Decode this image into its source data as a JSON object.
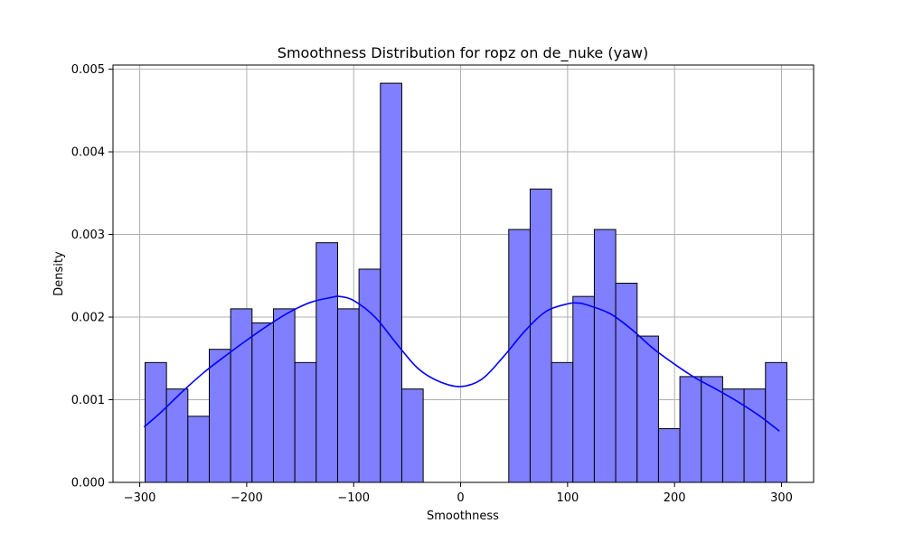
{
  "chart_data": {
    "type": "bar",
    "title": "Smoothness Distribution for ropz on de_nuke (yaw)",
    "xlabel": "Smoothness",
    "ylabel": "Density",
    "xlim": [
      -325,
      330
    ],
    "ylim": [
      0,
      0.00505
    ],
    "grid": true,
    "colors": {
      "bar_fill": "#7f7fff",
      "bar_edge": "#000000",
      "kde": "#0000ff",
      "grid": "#b0b0b0"
    },
    "x_ticks": [
      {
        "value": -300,
        "label": "−300"
      },
      {
        "value": -200,
        "label": "−200"
      },
      {
        "value": -100,
        "label": "−100"
      },
      {
        "value": 0,
        "label": "0"
      },
      {
        "value": 100,
        "label": "100"
      },
      {
        "value": 200,
        "label": "200"
      },
      {
        "value": 300,
        "label": "300"
      }
    ],
    "y_ticks": [
      {
        "value": 0,
        "label": "0.000"
      },
      {
        "value": 0.001,
        "label": "0.001"
      },
      {
        "value": 0.002,
        "label": "0.002"
      },
      {
        "value": 0.003,
        "label": "0.003"
      },
      {
        "value": 0.004,
        "label": "0.004"
      },
      {
        "value": 0.005,
        "label": "0.005"
      }
    ],
    "bins": [
      {
        "x0": -295,
        "x1": -275,
        "value": 0.00145
      },
      {
        "x0": -275,
        "x1": -255,
        "value": 0.00113
      },
      {
        "x0": -255,
        "x1": -235,
        "value": 0.0008
      },
      {
        "x0": -235,
        "x1": -215,
        "value": 0.00161
      },
      {
        "x0": -215,
        "x1": -195,
        "value": 0.0021
      },
      {
        "x0": -195,
        "x1": -175,
        "value": 0.00193
      },
      {
        "x0": -175,
        "x1": -155,
        "value": 0.0021
      },
      {
        "x0": -155,
        "x1": -135,
        "value": 0.00145
      },
      {
        "x0": -135,
        "x1": -115,
        "value": 0.0029
      },
      {
        "x0": -115,
        "x1": -95,
        "value": 0.0021
      },
      {
        "x0": -95,
        "x1": -75,
        "value": 0.00258
      },
      {
        "x0": -75,
        "x1": -55,
        "value": 0.00483
      },
      {
        "x0": -55,
        "x1": -35,
        "value": 0.00113
      },
      {
        "x0": -35,
        "x1": -15,
        "value": 0
      },
      {
        "x0": -15,
        "x1": 5,
        "value": 0
      },
      {
        "x0": 5,
        "x1": 25,
        "value": 0
      },
      {
        "x0": 25,
        "x1": 45,
        "value": 0
      },
      {
        "x0": 45,
        "x1": 65,
        "value": 0.00306
      },
      {
        "x0": 65,
        "x1": 85,
        "value": 0.00355
      },
      {
        "x0": 85,
        "x1": 105,
        "value": 0.00145
      },
      {
        "x0": 105,
        "x1": 125,
        "value": 0.00225
      },
      {
        "x0": 125,
        "x1": 145,
        "value": 0.00306
      },
      {
        "x0": 145,
        "x1": 165,
        "value": 0.00241
      },
      {
        "x0": 165,
        "x1": 185,
        "value": 0.00177
      },
      {
        "x0": 185,
        "x1": 205,
        "value": 0.00065
      },
      {
        "x0": 205,
        "x1": 225,
        "value": 0.00128
      },
      {
        "x0": 225,
        "x1": 245,
        "value": 0.00128
      },
      {
        "x0": 245,
        "x1": 265,
        "value": 0.00113
      },
      {
        "x0": 265,
        "x1": 285,
        "value": 0.00113
      },
      {
        "x0": 285,
        "x1": 305,
        "value": 0.00145
      }
    ],
    "kde": {
      "x": [
        -296,
        -280,
        -260,
        -240,
        -220,
        -200,
        -180,
        -160,
        -140,
        -120,
        -113,
        -100,
        -80,
        -60,
        -40,
        -20,
        0,
        20,
        40,
        60,
        80,
        100,
        110,
        120,
        140,
        160,
        180,
        200,
        220,
        240,
        260,
        280,
        298
      ],
      "y": [
        0.00067,
        0.00085,
        0.0011,
        0.00133,
        0.00153,
        0.00172,
        0.0019,
        0.00206,
        0.00218,
        0.00224,
        0.00225,
        0.0022,
        0.002,
        0.00168,
        0.00138,
        0.00122,
        0.00116,
        0.00125,
        0.00152,
        0.00183,
        0.00207,
        0.00216,
        0.00217,
        0.00214,
        0.00204,
        0.00185,
        0.00162,
        0.00143,
        0.00126,
        0.00112,
        0.00097,
        0.0008,
        0.00062
      ]
    }
  }
}
